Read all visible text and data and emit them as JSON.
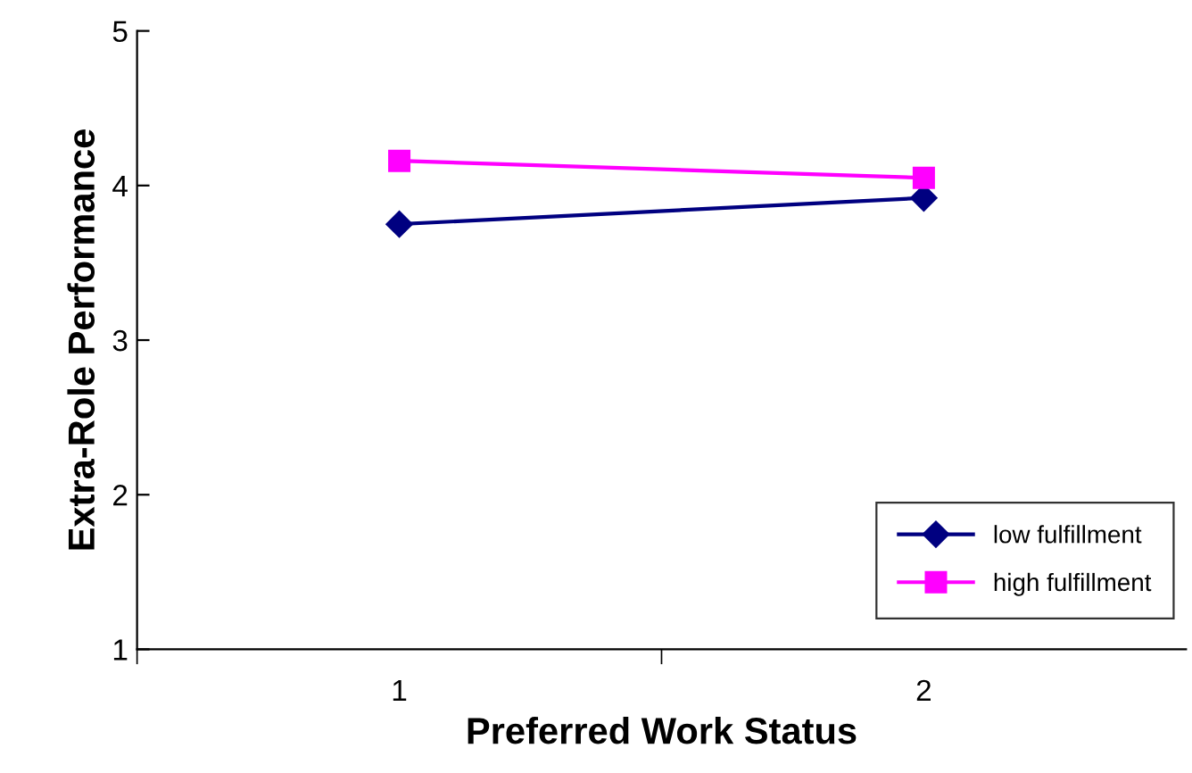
{
  "chart_data": {
    "type": "line",
    "xlabel": "Preferred Work Status",
    "ylabel": "Extra-Role Performance",
    "categories": [
      "1",
      "2"
    ],
    "series": [
      {
        "name": "low fulfillment",
        "color": "#000080",
        "values": [
          3.75,
          3.92
        ],
        "marker": "diamond"
      },
      {
        "name": "high fulfillment",
        "color": "#ff00ff",
        "values": [
          4.16,
          4.05
        ],
        "marker": "square"
      }
    ],
    "ylim": [
      1,
      5
    ],
    "yticks": [
      1,
      2,
      3,
      4,
      5
    ],
    "grid": false,
    "legend": "bottom right",
    "line_style": "solid"
  }
}
